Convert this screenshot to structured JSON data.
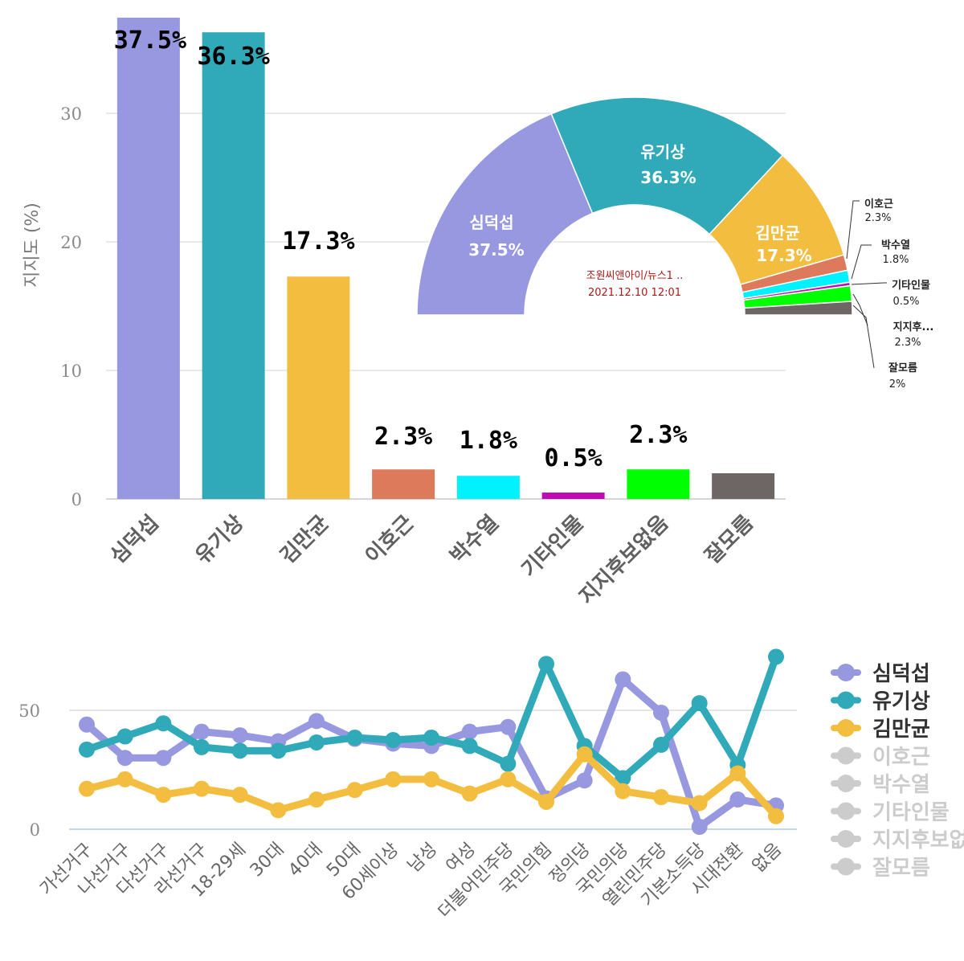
{
  "chart_data": [
    {
      "type": "bar",
      "ylabel": "지지도 (%)",
      "ylim": [
        0,
        37.5
      ],
      "yticks": [
        0,
        10,
        20,
        30
      ],
      "categories": [
        "심덕섭",
        "유기상",
        "김만균",
        "이호근",
        "박수열",
        "기타인물",
        "지지후보없음",
        "잘모름"
      ],
      "values": [
        37.5,
        36.3,
        17.3,
        2.3,
        1.8,
        0.5,
        2.3,
        2.0
      ],
      "labels": [
        "37.5%",
        "36.3%",
        "17.3%",
        "2.3%",
        "1.8%",
        "0.5%",
        "2.3%",
        ""
      ],
      "colors": [
        "#9898e0",
        "#30a9b8",
        "#f3be40",
        "#dd7a5c",
        "#00f2ff",
        "#c10cb6",
        "#00ff00",
        "#6e6565"
      ]
    },
    {
      "type": "pie",
      "subtype": "semicircle-donut",
      "categories": [
        "심덕섭",
        "유기상",
        "김만균",
        "이호근",
        "박수열",
        "기타인물",
        "지지후...",
        "잘모름"
      ],
      "values": [
        37.5,
        36.3,
        17.3,
        2.3,
        1.8,
        0.5,
        2.3,
        2.0
      ],
      "labels": [
        "37.5%",
        "36.3%",
        "17.3%",
        "2.3%",
        "1.8%",
        "0.5%",
        "2.3%",
        "2%"
      ],
      "colors": [
        "#9898e0",
        "#30a9b8",
        "#f3be40",
        "#dd7a5c",
        "#00f2ff",
        "#c10cb6",
        "#00ff00",
        "#6e6565"
      ],
      "center_text": [
        "조원씨앤아이/뉴스1 ..",
        "2021.12.10 12:01"
      ]
    },
    {
      "type": "line",
      "ylim": [
        0,
        72
      ],
      "yticks": [
        0,
        50
      ],
      "categories": [
        "가선거구",
        "나선거구",
        "다선거구",
        "라선거구",
        "18-29세",
        "30대",
        "40대",
        "50대",
        "60세이상",
        "남성",
        "여성",
        "더불어민주당",
        "국민의힘",
        "정의당",
        "국민의당",
        "열린민주당",
        "기본소득당",
        "시대전환",
        "없음"
      ],
      "series": [
        {
          "name": "심덕섭",
          "color": "#9898e0",
          "visible": true,
          "values": [
            44,
            30,
            30,
            41,
            39.5,
            37,
            45.5,
            38,
            36,
            35,
            41,
            43,
            13,
            20.5,
            63,
            49,
            1,
            12.5,
            10
          ]
        },
        {
          "name": "유기상",
          "color": "#30a9b8",
          "visible": true,
          "values": [
            33.5,
            39,
            44.5,
            34.5,
            33,
            33,
            36.5,
            38.5,
            37.5,
            38.5,
            35,
            27.5,
            69.5,
            35,
            21.5,
            35.5,
            53,
            27,
            72.5
          ]
        },
        {
          "name": "김만균",
          "color": "#f3be40",
          "visible": true,
          "values": [
            17,
            21,
            14.5,
            17,
            14.5,
            8,
            12.5,
            16.5,
            21,
            21,
            15,
            21,
            11.5,
            31.5,
            16,
            13.5,
            11,
            23.5,
            5.5
          ]
        },
        {
          "name": "이호근",
          "color": "#cccccc",
          "visible": false
        },
        {
          "name": "박수열",
          "color": "#cccccc",
          "visible": false
        },
        {
          "name": "기타인물",
          "color": "#cccccc",
          "visible": false
        },
        {
          "name": "지지후보없음",
          "color": "#cccccc",
          "visible": false
        },
        {
          "name": "잘모름",
          "color": "#cccccc",
          "visible": false
        }
      ]
    }
  ]
}
